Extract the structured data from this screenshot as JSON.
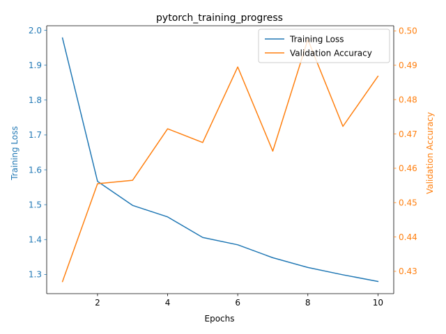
{
  "chart_data": {
    "type": "line",
    "title": "pytorch_training_progress",
    "xlabel": "Epochs",
    "ylabel_left": "Training Loss",
    "ylabel_right": "Validation Accuracy",
    "x": [
      1,
      2,
      3,
      4,
      5,
      6,
      7,
      8,
      9,
      10
    ],
    "xlim": [
      0.55,
      10.45
    ],
    "xticks": [
      2,
      4,
      6,
      8,
      10
    ],
    "ylim_left": [
      1.245,
      2.013
    ],
    "yticks_left": [
      1.3,
      1.4,
      1.5,
      1.6,
      1.7,
      1.8,
      1.9,
      2.0
    ],
    "ylim_right": [
      0.4235,
      0.5015
    ],
    "yticks_right": [
      0.43,
      0.44,
      0.45,
      0.46,
      0.47,
      0.48,
      0.49,
      0.5
    ],
    "grid": false,
    "legend_position": "top-right",
    "series": [
      {
        "name": "Training Loss",
        "axis": "left",
        "color": "#1f77b4",
        "values": [
          1.978,
          1.567,
          1.498,
          1.465,
          1.406,
          1.385,
          1.348,
          1.32,
          1.299,
          1.28
        ]
      },
      {
        "name": "Validation Accuracy",
        "axis": "right",
        "color": "#ff7f0e",
        "values": [
          0.427,
          0.4555,
          0.4565,
          0.4715,
          0.4675,
          0.4895,
          0.465,
          0.4975,
          0.4722,
          0.4868
        ]
      }
    ]
  },
  "colors": {
    "axis": "#000000",
    "left_axis": "#1f77b4",
    "right_axis": "#ff7f0e",
    "legend_border": "#cccccc",
    "background": "#ffffff"
  }
}
